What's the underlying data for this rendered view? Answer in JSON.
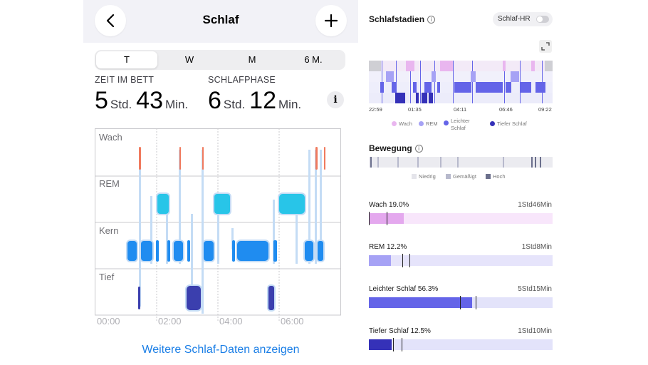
{
  "left": {
    "title": "Schlaf",
    "segments": [
      "T",
      "W",
      "M",
      "6 M."
    ],
    "active_segment": 0,
    "time_in_bed": {
      "label": "ZEIT IM BETT",
      "hours": "5",
      "hours_unit": "Std.",
      "minutes": "43",
      "minutes_unit": "Min."
    },
    "sleep_phase": {
      "label": "SCHLAFPHASE",
      "hours": "6",
      "hours_unit": "Std.",
      "minutes": "12",
      "minutes_unit": "Min."
    },
    "info_label": "i",
    "hypnogram": {
      "stage_labels": [
        "Wach",
        "REM",
        "Kern",
        "Tief"
      ],
      "time_labels": [
        "00:00",
        "02:00",
        "04:00",
        "06:00"
      ],
      "colors": {
        "awake": "#f07a5e",
        "rem": "#28c5e8",
        "core": "#1f8cf0",
        "deep": "#3b3fae",
        "line": "#c4dcf5"
      }
    },
    "more_link": "Weitere Schlaf-Daten anzeigen"
  },
  "right": {
    "stages_title": "Schlafstadien",
    "hr_toggle_label": "Schlaf-HR",
    "time_ticks": [
      "22:59",
      "01:35",
      "04:11",
      "06:46",
      "09:22"
    ],
    "legend": [
      {
        "label": "Wach",
        "color": "#e9b6ef"
      },
      {
        "label": "REM",
        "color": "#a6a2f5"
      },
      {
        "label": "Leichter Schlaf",
        "color": "#6464e8"
      },
      {
        "label": "Tiefer Schlaf",
        "color": "#3531b8"
      }
    ],
    "movement_title": "Bewegung",
    "movement_legend": [
      {
        "label": "Niedrig",
        "color": "#e4e4ea"
      },
      {
        "label": "Gemäßigt",
        "color": "#b7b9cc"
      },
      {
        "label": "Hoch",
        "color": "#6b6f8c"
      }
    ],
    "stage_rows": [
      {
        "label": "Wach 19.0%",
        "duration": "1Std46Min",
        "fraction": 0.19,
        "fill": "#e4a8ee",
        "track": "#f8e6fb"
      },
      {
        "label": "REM 12.2%",
        "duration": "1Std8Min",
        "fraction": 0.122,
        "fill": "#a6a2f5",
        "track": "#e6e4fb"
      },
      {
        "label": "Leichter Schlaf 56.3%",
        "duration": "5Std15Min",
        "fraction": 0.563,
        "fill": "#6464e8",
        "track": "#e3e3fa"
      },
      {
        "label": "Tiefer Schlaf 12.5%",
        "duration": "1Std10Min",
        "fraction": 0.125,
        "fill": "#3531b8",
        "track": "#e3e3fa"
      }
    ]
  }
}
